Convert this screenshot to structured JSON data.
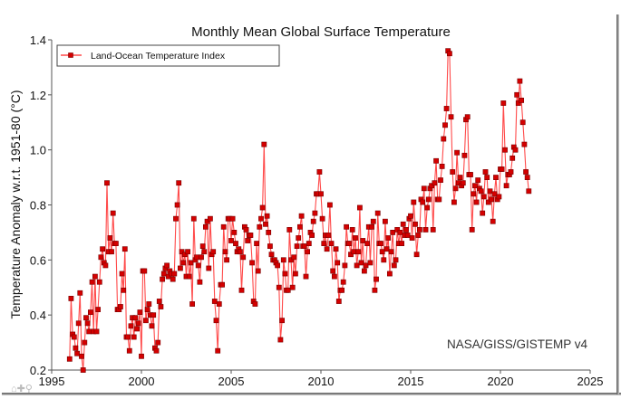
{
  "chart_data": {
    "type": "line",
    "title": "Monthly Mean Global Surface Temperature",
    "xlabel": "",
    "ylabel": "Temperature Anomaly w.r.t. 1951-80 (°C)",
    "xlim": [
      1995,
      2025
    ],
    "ylim": [
      0.2,
      1.4
    ],
    "xticks": [
      1995,
      2000,
      2005,
      2010,
      2015,
      2020,
      2025
    ],
    "yticks": [
      0.2,
      0.4,
      0.6,
      0.8,
      1.0,
      1.2,
      1.4
    ],
    "xtick_labels": [
      "1995",
      "2000",
      "2005",
      "2010",
      "2015",
      "2020",
      "2025"
    ],
    "ytick_labels": [
      "0.2",
      "0.4",
      "0.6",
      "0.8",
      "1.0",
      "1.2",
      "1.4"
    ],
    "grid": false,
    "legend": {
      "position": "top-left",
      "entries": [
        "Land-Ocean Temperature Index"
      ]
    },
    "annotation": "NASA/GISS/GISTEMP v4",
    "colors": {
      "series": "#d40000",
      "line": "#ff4a4a",
      "marker_edge": "#7a0000"
    },
    "series": [
      {
        "name": "Land-Ocean Temperature Index",
        "start_year": 1996.0,
        "step_months": 1,
        "values": [
          0.24,
          0.46,
          0.33,
          0.32,
          0.28,
          0.26,
          0.37,
          0.48,
          0.25,
          0.2,
          0.3,
          0.39,
          0.37,
          0.34,
          0.41,
          0.52,
          0.34,
          0.54,
          0.34,
          0.42,
          0.52,
          0.61,
          0.64,
          0.59,
          0.58,
          0.88,
          0.63,
          0.68,
          0.63,
          0.77,
          0.66,
          0.66,
          0.42,
          0.42,
          0.43,
          0.55,
          0.49,
          0.64,
          0.32,
          0.32,
          0.27,
          0.36,
          0.39,
          0.32,
          0.39,
          0.35,
          0.37,
          0.41,
          0.25,
          0.56,
          0.56,
          0.38,
          0.42,
          0.44,
          0.4,
          0.36,
          0.4,
          0.28,
          0.27,
          0.3,
          0.45,
          0.43,
          0.53,
          0.55,
          0.57,
          0.58,
          0.54,
          0.56,
          0.55,
          0.53,
          0.55,
          0.75,
          0.8,
          0.88,
          0.57,
          0.63,
          0.59,
          0.62,
          0.54,
          0.63,
          0.54,
          0.59,
          0.44,
          0.75,
          0.6,
          0.61,
          0.58,
          0.52,
          0.61,
          0.65,
          0.63,
          0.72,
          0.74,
          0.57,
          0.75,
          0.62,
          0.63,
          0.45,
          0.38,
          0.27,
          0.44,
          0.51,
          0.51,
          0.72,
          0.63,
          0.6,
          0.75,
          0.75,
          0.67,
          0.75,
          0.7,
          0.66,
          0.63,
          0.64,
          0.63,
          0.49,
          0.61,
          0.72,
          0.71,
          0.67,
          0.69,
          0.69,
          0.59,
          0.45,
          0.44,
          0.66,
          0.56,
          0.72,
          0.75,
          0.79,
          1.02,
          0.73,
          0.76,
          0.7,
          0.65,
          0.62,
          0.6,
          0.6,
          0.59,
          0.58,
          0.5,
          0.31,
          0.38,
          0.6,
          0.55,
          0.49,
          0.49,
          0.71,
          0.6,
          0.5,
          0.61,
          0.55,
          0.65,
          0.68,
          0.72,
          0.76,
          0.65,
          0.65,
          0.54,
          0.63,
          0.66,
          0.7,
          0.69,
          0.74,
          0.77,
          0.84,
          0.84,
          0.92,
          0.84,
          0.75,
          0.66,
          0.69,
          0.64,
          0.69,
          0.8,
          0.66,
          0.56,
          0.54,
          0.64,
          0.59,
          0.45,
          0.49,
          0.49,
          0.52,
          0.58,
          0.72,
          0.66,
          0.66,
          0.62,
          0.71,
          0.63,
          0.68,
          0.58,
          0.63,
          0.79,
          0.59,
          0.67,
          0.56,
          0.58,
          0.66,
          0.72,
          0.59,
          0.72,
          0.74,
          0.49,
          0.53,
          0.77,
          0.66,
          0.66,
          0.63,
          0.6,
          0.74,
          0.64,
          0.68,
          0.55,
          0.63,
          0.7,
          0.58,
          0.6,
          0.71,
          0.66,
          0.7,
          0.66,
          0.73,
          0.69,
          0.71,
          0.69,
          0.75,
          0.76,
          0.68,
          0.81,
          0.73,
          0.62,
          0.69,
          0.71,
          0.82,
          0.81,
          0.86,
          0.71,
          0.79,
          0.82,
          0.86,
          0.87,
          0.71,
          0.88,
          0.96,
          0.82,
          0.82,
          0.89,
          0.94,
          1.04,
          1.09,
          1.15,
          1.36,
          1.35,
          1.12,
          0.92,
          0.81,
          0.86,
          0.99,
          0.88,
          0.9,
          0.87,
          0.88,
          0.98,
          1.11,
          1.12,
          0.91,
          0.91,
          0.71,
          0.84,
          0.87,
          0.81,
          0.89,
          0.86,
          0.85,
          0.77,
          0.83,
          0.92,
          0.9,
          0.81,
          0.85,
          0.82,
          0.74,
          0.84,
          0.9,
          0.82,
          0.83,
          0.93,
          0.93,
          1.17,
          1.0,
          0.87,
          0.91,
          0.91,
          0.92,
          0.97,
          1.01,
          1.0,
          1.2,
          1.17,
          1.25,
          1.18,
          1.1,
          1.02,
          0.92,
          0.9,
          0.85
        ]
      }
    ]
  },
  "toolbar": {
    "home_icon": "home-icon",
    "pan_icon": "pan-icon",
    "zoom_icon": "zoom-icon"
  }
}
